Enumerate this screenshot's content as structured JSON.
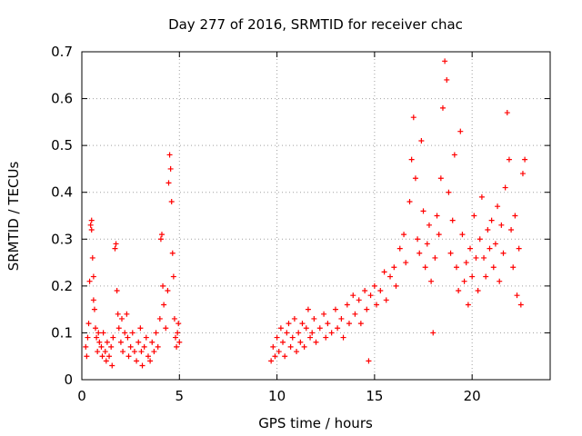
{
  "chart_data": {
    "type": "scatter",
    "title": "Day 277 of 2016, SRMTID for receiver chac",
    "xlabel": "GPS time / hours",
    "ylabel": "SRMTID / TECUs",
    "xlim": [
      0,
      24
    ],
    "ylim": [
      0,
      0.7
    ],
    "x_ticks": [
      0,
      5,
      10,
      15,
      20
    ],
    "x_tick_labels": [
      "0",
      "5",
      "10",
      "15",
      "20"
    ],
    "y_ticks": [
      0,
      0.1,
      0.2,
      0.3,
      0.4,
      0.5,
      0.6,
      0.7
    ],
    "y_tick_labels": [
      "0",
      "0.1",
      "0.2",
      "0.3",
      "0.4",
      "0.5",
      "0.6",
      "0.7"
    ],
    "grid": true,
    "marker": "+",
    "marker_color": "#ff0000",
    "series": [
      {
        "name": "SRMTID",
        "points": [
          [
            0.2,
            0.07
          ],
          [
            0.25,
            0.05
          ],
          [
            0.3,
            0.09
          ],
          [
            0.35,
            0.12
          ],
          [
            0.4,
            0.21
          ],
          [
            0.45,
            0.33
          ],
          [
            0.5,
            0.34
          ],
          [
            0.5,
            0.32
          ],
          [
            0.55,
            0.26
          ],
          [
            0.6,
            0.22
          ],
          [
            0.6,
            0.17
          ],
          [
            0.65,
            0.15
          ],
          [
            0.7,
            0.11
          ],
          [
            0.75,
            0.09
          ],
          [
            0.8,
            0.06
          ],
          [
            0.85,
            0.1
          ],
          [
            0.9,
            0.08
          ],
          [
            1.0,
            0.07
          ],
          [
            1.05,
            0.05
          ],
          [
            1.1,
            0.1
          ],
          [
            1.2,
            0.06
          ],
          [
            1.25,
            0.04
          ],
          [
            1.3,
            0.08
          ],
          [
            1.4,
            0.05
          ],
          [
            1.5,
            0.07
          ],
          [
            1.55,
            0.03
          ],
          [
            1.6,
            0.09
          ],
          [
            1.7,
            0.28
          ],
          [
            1.75,
            0.29
          ],
          [
            1.8,
            0.19
          ],
          [
            1.85,
            0.14
          ],
          [
            1.9,
            0.11
          ],
          [
            2.0,
            0.08
          ],
          [
            2.05,
            0.13
          ],
          [
            2.1,
            0.06
          ],
          [
            2.2,
            0.1
          ],
          [
            2.3,
            0.14
          ],
          [
            2.35,
            0.09
          ],
          [
            2.4,
            0.05
          ],
          [
            2.5,
            0.07
          ],
          [
            2.6,
            0.1
          ],
          [
            2.7,
            0.06
          ],
          [
            2.8,
            0.04
          ],
          [
            2.9,
            0.08
          ],
          [
            3.0,
            0.11
          ],
          [
            3.05,
            0.06
          ],
          [
            3.1,
            0.03
          ],
          [
            3.2,
            0.07
          ],
          [
            3.3,
            0.09
          ],
          [
            3.4,
            0.05
          ],
          [
            3.5,
            0.04
          ],
          [
            3.6,
            0.08
          ],
          [
            3.7,
            0.06
          ],
          [
            3.8,
            0.1
          ],
          [
            3.9,
            0.07
          ],
          [
            4.0,
            0.13
          ],
          [
            4.05,
            0.3
          ],
          [
            4.1,
            0.31
          ],
          [
            4.15,
            0.2
          ],
          [
            4.2,
            0.16
          ],
          [
            4.3,
            0.11
          ],
          [
            4.4,
            0.19
          ],
          [
            4.45,
            0.42
          ],
          [
            4.5,
            0.48
          ],
          [
            4.55,
            0.45
          ],
          [
            4.6,
            0.38
          ],
          [
            4.65,
            0.27
          ],
          [
            4.7,
            0.22
          ],
          [
            4.75,
            0.13
          ],
          [
            4.8,
            0.09
          ],
          [
            4.85,
            0.07
          ],
          [
            4.9,
            0.1
          ],
          [
            4.95,
            0.12
          ],
          [
            5.0,
            0.08
          ],
          [
            9.7,
            0.04
          ],
          [
            9.8,
            0.07
          ],
          [
            9.9,
            0.05
          ],
          [
            10.0,
            0.09
          ],
          [
            10.1,
            0.06
          ],
          [
            10.2,
            0.11
          ],
          [
            10.3,
            0.08
          ],
          [
            10.4,
            0.05
          ],
          [
            10.5,
            0.1
          ],
          [
            10.6,
            0.12
          ],
          [
            10.7,
            0.07
          ],
          [
            10.8,
            0.09
          ],
          [
            10.9,
            0.13
          ],
          [
            11.0,
            0.06
          ],
          [
            11.1,
            0.1
          ],
          [
            11.2,
            0.08
          ],
          [
            11.3,
            0.12
          ],
          [
            11.4,
            0.07
          ],
          [
            11.5,
            0.11
          ],
          [
            11.6,
            0.15
          ],
          [
            11.7,
            0.09
          ],
          [
            11.8,
            0.1
          ],
          [
            11.9,
            0.13
          ],
          [
            12.0,
            0.08
          ],
          [
            12.2,
            0.11
          ],
          [
            12.4,
            0.14
          ],
          [
            12.5,
            0.09
          ],
          [
            12.6,
            0.12
          ],
          [
            12.8,
            0.1
          ],
          [
            13.0,
            0.15
          ],
          [
            13.1,
            0.11
          ],
          [
            13.3,
            0.13
          ],
          [
            13.4,
            0.09
          ],
          [
            13.6,
            0.16
          ],
          [
            13.7,
            0.12
          ],
          [
            13.9,
            0.18
          ],
          [
            14.0,
            0.14
          ],
          [
            14.2,
            0.17
          ],
          [
            14.3,
            0.12
          ],
          [
            14.5,
            0.19
          ],
          [
            14.6,
            0.15
          ],
          [
            14.7,
            0.04
          ],
          [
            14.8,
            0.18
          ],
          [
            15.0,
            0.2
          ],
          [
            15.1,
            0.16
          ],
          [
            15.3,
            0.19
          ],
          [
            15.5,
            0.23
          ],
          [
            15.6,
            0.17
          ],
          [
            15.8,
            0.22
          ],
          [
            16.0,
            0.24
          ],
          [
            16.1,
            0.2
          ],
          [
            16.3,
            0.28
          ],
          [
            16.5,
            0.31
          ],
          [
            16.6,
            0.25
          ],
          [
            16.8,
            0.38
          ],
          [
            16.9,
            0.47
          ],
          [
            17.0,
            0.56
          ],
          [
            17.1,
            0.43
          ],
          [
            17.2,
            0.3
          ],
          [
            17.3,
            0.27
          ],
          [
            17.4,
            0.51
          ],
          [
            17.5,
            0.36
          ],
          [
            17.6,
            0.24
          ],
          [
            17.7,
            0.29
          ],
          [
            17.8,
            0.33
          ],
          [
            17.9,
            0.21
          ],
          [
            18.0,
            0.1
          ],
          [
            18.1,
            0.26
          ],
          [
            18.2,
            0.35
          ],
          [
            18.3,
            0.31
          ],
          [
            18.4,
            0.43
          ],
          [
            18.5,
            0.58
          ],
          [
            18.6,
            0.68
          ],
          [
            18.7,
            0.64
          ],
          [
            18.8,
            0.4
          ],
          [
            18.9,
            0.27
          ],
          [
            19.0,
            0.34
          ],
          [
            19.1,
            0.48
          ],
          [
            19.2,
            0.24
          ],
          [
            19.3,
            0.19
          ],
          [
            19.4,
            0.53
          ],
          [
            19.5,
            0.31
          ],
          [
            19.6,
            0.21
          ],
          [
            19.7,
            0.25
          ],
          [
            19.8,
            0.16
          ],
          [
            19.9,
            0.28
          ],
          [
            20.0,
            0.22
          ],
          [
            20.1,
            0.35
          ],
          [
            20.2,
            0.26
          ],
          [
            20.3,
            0.19
          ],
          [
            20.4,
            0.3
          ],
          [
            20.5,
            0.39
          ],
          [
            20.6,
            0.26
          ],
          [
            20.7,
            0.22
          ],
          [
            20.8,
            0.32
          ],
          [
            20.9,
            0.28
          ],
          [
            21.0,
            0.34
          ],
          [
            21.1,
            0.24
          ],
          [
            21.2,
            0.29
          ],
          [
            21.3,
            0.37
          ],
          [
            21.4,
            0.21
          ],
          [
            21.5,
            0.33
          ],
          [
            21.6,
            0.27
          ],
          [
            21.7,
            0.41
          ],
          [
            21.8,
            0.57
          ],
          [
            21.9,
            0.47
          ],
          [
            22.0,
            0.32
          ],
          [
            22.1,
            0.24
          ],
          [
            22.2,
            0.35
          ],
          [
            22.3,
            0.18
          ],
          [
            22.4,
            0.28
          ],
          [
            22.5,
            0.16
          ],
          [
            22.6,
            0.44
          ],
          [
            22.7,
            0.47
          ]
        ]
      }
    ]
  }
}
